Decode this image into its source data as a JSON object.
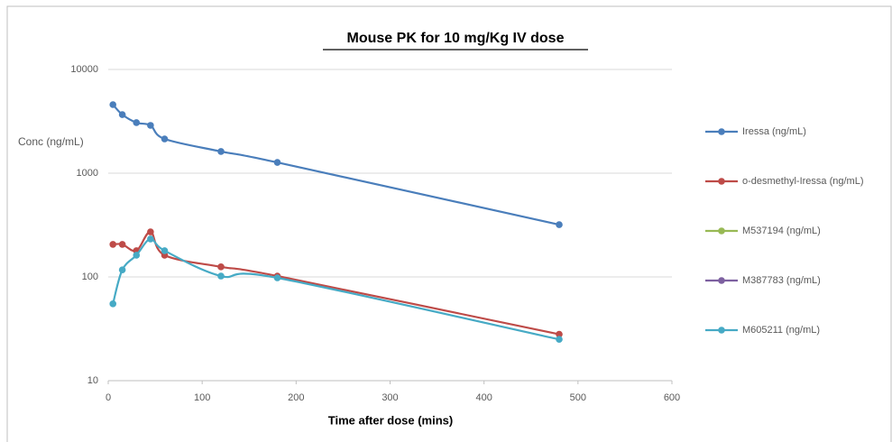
{
  "chart_data": {
    "type": "line",
    "title": "Mouse PK for 10 mg/Kg IV dose",
    "x_label": "Time after dose (mins)",
    "y_label": "Conc (ng/mL)",
    "x": [
      5,
      15,
      30,
      45,
      60,
      120,
      180,
      480
    ],
    "series": [
      {
        "name": "Iressa (ng/mL)",
        "color": "#4a7ebb",
        "values": [
          4580,
          3670,
          3070,
          2890,
          2140,
          1620,
          1270,
          319
        ]
      },
      {
        "name": "o-desmethyl-Iressa (ng/mL)",
        "color": "#be4b48",
        "values": [
          206,
          206,
          179,
          272,
          162,
          125,
          102,
          28
        ]
      },
      {
        "name": "M537194 (ng/mL)",
        "color": "#98b954",
        "values": [
          null,
          null,
          null,
          null,
          null,
          null,
          null,
          null
        ]
      },
      {
        "name": "M387783 (ng/mL)",
        "color": "#7d60a0",
        "values": [
          null,
          null,
          null,
          null,
          null,
          null,
          null,
          null
        ]
      },
      {
        "name": "M605211 (ng/mL)",
        "color": "#46aac5",
        "values": [
          55,
          117,
          162,
          232,
          179,
          102,
          98,
          25
        ]
      }
    ],
    "xlim": [
      0,
      600
    ],
    "xticks": [
      0,
      100,
      200,
      300,
      400,
      500,
      600
    ],
    "ylim": [
      10,
      10000
    ],
    "yticks": [
      10,
      100,
      1000,
      10000
    ],
    "log_y": true,
    "grid": true,
    "smooth": true,
    "legend": "right"
  }
}
